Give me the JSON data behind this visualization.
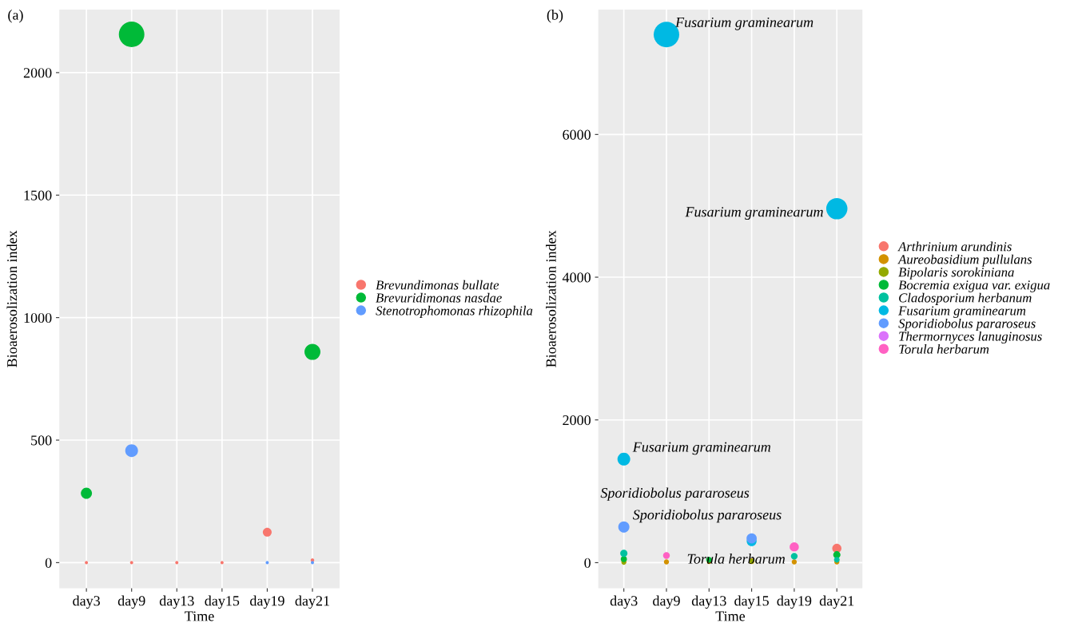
{
  "chart_data": [
    {
      "type": "bubble",
      "title": "(a)",
      "xlabel": "Time",
      "ylabel": "Bioaerosolization index",
      "categories": [
        "day3",
        "day9",
        "day13",
        "day15",
        "day19",
        "day21"
      ],
      "ylim": [
        -105,
        2257
      ],
      "yticks": [
        0,
        500,
        1000,
        1500,
        2000
      ],
      "grid": true,
      "legend": "right",
      "series": [
        {
          "name": "Brevundimonas bullate",
          "color": "#f8766d",
          "values": [
            0,
            0,
            0,
            0,
            124,
            10
          ],
          "sizes": [
            0.016,
            0.016,
            0.016,
            0.016,
            0.12,
            0.02
          ]
        },
        {
          "name": "Brevuridimonas nasdae",
          "color": "#00ba38",
          "values": [
            283,
            2156,
            null,
            null,
            null,
            860
          ],
          "sizes": [
            0.19,
            1,
            null,
            null,
            null,
            0.39
          ]
        },
        {
          "name": "Stenotrophomonas rhizophila",
          "color": "#619cff",
          "values": [
            null,
            457,
            null,
            null,
            0,
            0
          ],
          "sizes": [
            null,
            0.25,
            null,
            null,
            0.016,
            0.016
          ]
        }
      ]
    },
    {
      "type": "bubble",
      "title": "(b)",
      "xlabel": "Time",
      "ylabel": "Bioaerosolization index",
      "categories": [
        "day3",
        "day9",
        "day13",
        "day15",
        "day19",
        "day21"
      ],
      "ylim": [
        -360,
        7749
      ],
      "yticks": [
        0,
        2000,
        4000,
        6000
      ],
      "grid": true,
      "legend": "right",
      "series": [
        {
          "name": "Arthrinium arundinis",
          "color": "#f8766d",
          "values": [
            10,
            null,
            null,
            null,
            null,
            200
          ],
          "sizes": [
            0.03,
            null,
            null,
            null,
            null,
            0.13
          ]
        },
        {
          "name": "Aureobasidium pullulans",
          "color": "#d39200",
          "values": [
            10,
            10,
            10,
            20,
            10,
            10
          ],
          "sizes": [
            0.04,
            0.04,
            0.03,
            0.05,
            0.04,
            0.04
          ]
        },
        {
          "name": "Bipolaris sorokiniana",
          "color": "#93aa00",
          "values": [
            0,
            null,
            null,
            20,
            null,
            null
          ],
          "sizes": [
            0.03,
            null,
            null,
            0.04,
            null,
            null
          ]
        },
        {
          "name": "Bocremia exigua var. exigua",
          "color": "#00ba38",
          "values": [
            50,
            null,
            40,
            null,
            null,
            110
          ],
          "sizes": [
            0.06,
            null,
            0.05,
            null,
            null,
            0.08
          ]
        },
        {
          "name": "Cladosporium herbanum",
          "color": "#00c19f",
          "values": [
            130,
            null,
            null,
            null,
            90,
            40
          ],
          "sizes": [
            0.08,
            null,
            null,
            null,
            0.07,
            0.05
          ]
        },
        {
          "name": "Fusarium graminearum",
          "color": "#00b9e3",
          "values": [
            1450,
            7400,
            null,
            300,
            null,
            4960
          ],
          "sizes": [
            0.25,
            1,
            null,
            0.15,
            null,
            0.69
          ]
        },
        {
          "name": "Sporidiobolus pararoseus",
          "color": "#619cff",
          "values": [
            500,
            null,
            null,
            340,
            null,
            null
          ],
          "sizes": [
            0.19,
            null,
            null,
            0.16,
            null,
            null
          ]
        },
        {
          "name": "Thermornyces lanuginosus",
          "color": "#db72fb",
          "values": [
            null,
            null,
            null,
            null,
            null,
            null
          ],
          "sizes": [
            null,
            null,
            null,
            null,
            null,
            null
          ]
        },
        {
          "name": "Torula herbarum",
          "color": "#ff61c3",
          "values": [
            null,
            100,
            null,
            null,
            220,
            null
          ],
          "sizes": [
            null,
            0.07,
            null,
            null,
            0.13,
            null
          ]
        }
      ],
      "annotations": [
        {
          "text": "Fusarium graminearum",
          "x": "day9",
          "y": 7400
        },
        {
          "text": "Fusarium graminearum",
          "x": "day21",
          "y": 4960
        },
        {
          "text": "Fusarium graminearum",
          "x": "day3",
          "y": 1450
        },
        {
          "text": "Sporidiobolus pararoseus",
          "x": "day3",
          "y": 500
        },
        {
          "text": "Sporidiobolus pararoseus",
          "x": "day15",
          "y": 340
        },
        {
          "text": "Torula herbarum",
          "x": "day19",
          "y": 220
        }
      ]
    }
  ]
}
